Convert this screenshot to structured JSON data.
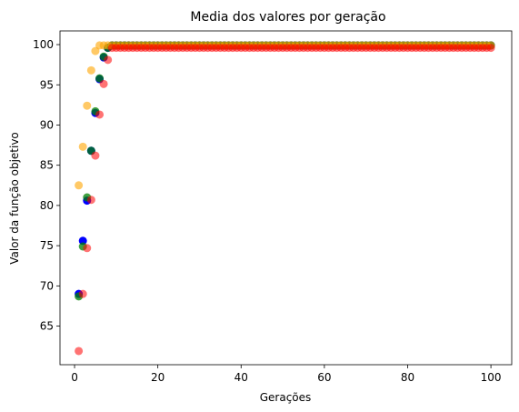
{
  "chart_data": {
    "type": "scatter",
    "title": "Media dos valores por geração",
    "xlabel": "Gerações",
    "ylabel": "Valor da função objetivo",
    "xlim": [
      -3.5,
      105
    ],
    "ylim": [
      60.2,
      101.7
    ],
    "xticks": [
      0,
      20,
      40,
      60,
      80,
      100
    ],
    "yticks": [
      65,
      70,
      75,
      80,
      85,
      90,
      95,
      100
    ],
    "grid": false,
    "legend": "none",
    "series": [
      {
        "color": "#0000ff",
        "alpha": 1.0,
        "points": [
          [
            1,
            69.0
          ],
          [
            2,
            75.6
          ],
          [
            3,
            80.6
          ],
          [
            4,
            86.8
          ],
          [
            5,
            91.5
          ],
          [
            6,
            95.7
          ],
          [
            7,
            98.4
          ],
          [
            8,
            99.6
          ]
        ],
        "plateau": {
          "from": 9,
          "to": 100,
          "y": 99.9
        }
      },
      {
        "color": "#008000",
        "alpha": 0.75,
        "points": [
          [
            1,
            68.7
          ],
          [
            2,
            74.9
          ],
          [
            3,
            81.0
          ],
          [
            4,
            86.8
          ],
          [
            5,
            91.7
          ],
          [
            6,
            95.8
          ],
          [
            7,
            98.5
          ],
          [
            8,
            99.6
          ]
        ],
        "plateau": {
          "from": 9,
          "to": 100,
          "y": 99.9
        }
      },
      {
        "color": "#ffa500",
        "alpha": 0.6,
        "points": [
          [
            1,
            82.5
          ],
          [
            2,
            87.3
          ],
          [
            3,
            92.4
          ],
          [
            4,
            96.8
          ],
          [
            5,
            99.2
          ],
          [
            6,
            99.9
          ],
          [
            7,
            99.9
          ],
          [
            8,
            99.9
          ]
        ],
        "plateau": {
          "from": 9,
          "to": 100,
          "y": 99.9
        }
      },
      {
        "color": "#ff0000",
        "alpha": 0.55,
        "points": [
          [
            1,
            61.9
          ],
          [
            2,
            69.0
          ],
          [
            3,
            74.7
          ],
          [
            4,
            80.7
          ],
          [
            5,
            86.2
          ],
          [
            6,
            91.3
          ],
          [
            7,
            95.1
          ],
          [
            8,
            98.1
          ]
        ],
        "plateau": {
          "from": 9,
          "to": 100,
          "y": 99.6
        }
      }
    ]
  }
}
